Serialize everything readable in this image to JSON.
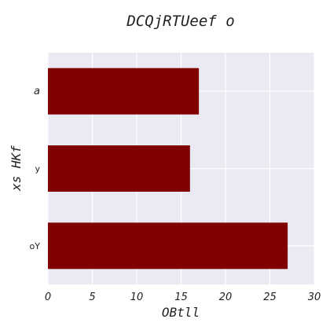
{
  "chart_data": {
    "type": "bar",
    "orientation": "horizontal",
    "title": "DCQjRTUeef o",
    "xlabel": "OBtll",
    "ylabel": "xs HKf",
    "categories": [
      "a",
      "y",
      "oY"
    ],
    "values": [
      17,
      16,
      27
    ],
    "xlim": [
      0,
      30
    ],
    "xticks": [
      0,
      5,
      10,
      15,
      20,
      25,
      30
    ],
    "grid": true,
    "bar_color": "#800000",
    "background_color": "#eaeaf2"
  }
}
